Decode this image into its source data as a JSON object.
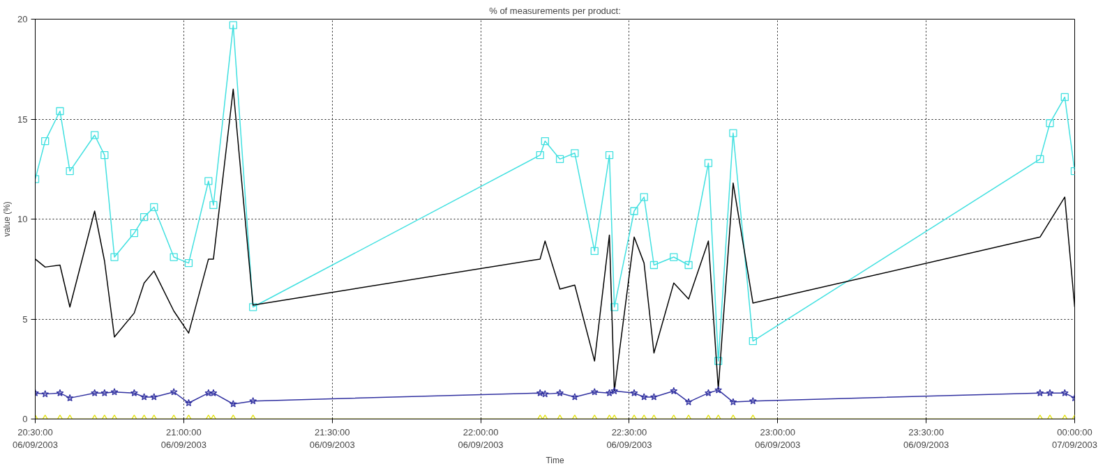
{
  "chart_data": {
    "type": "line",
    "title": "% of measurements per product:",
    "xlabel": "Time",
    "ylabel": "value (%)",
    "x": [
      "2003-09-06T20:30",
      "2003-09-06T20:32",
      "2003-09-06T20:35",
      "2003-09-06T20:37",
      "2003-09-06T20:42",
      "2003-09-06T20:44",
      "2003-09-06T20:46",
      "2003-09-06T20:50",
      "2003-09-06T20:52",
      "2003-09-06T20:54",
      "2003-09-06T20:58",
      "2003-09-06T21:01",
      "2003-09-06T21:05",
      "2003-09-06T21:06",
      "2003-09-06T21:10",
      "2003-09-06T21:14",
      "2003-09-06T22:12",
      "2003-09-06T22:13",
      "2003-09-06T22:16",
      "2003-09-06T22:19",
      "2003-09-06T22:23",
      "2003-09-06T22:26",
      "2003-09-06T22:27",
      "2003-09-06T22:31",
      "2003-09-06T22:33",
      "2003-09-06T22:35",
      "2003-09-06T22:39",
      "2003-09-06T22:42",
      "2003-09-06T22:46",
      "2003-09-06T22:48",
      "2003-09-06T22:51",
      "2003-09-06T22:55",
      "2003-09-06T23:53",
      "2003-09-06T23:55",
      "2003-09-06T23:58",
      "2003-09-07T00:00"
    ],
    "series": [
      {
        "color": "#40e0e0",
        "marker": "square",
        "values": [
          12.0,
          13.9,
          15.4,
          12.4,
          14.2,
          13.2,
          8.1,
          9.3,
          10.1,
          10.6,
          8.1,
          7.8,
          11.9,
          10.7,
          19.7,
          5.6,
          13.2,
          13.9,
          13.0,
          13.3,
          8.4,
          13.2,
          5.6,
          10.4,
          11.1,
          7.7,
          8.1,
          7.7,
          12.8,
          2.9,
          14.3,
          3.9,
          13.0,
          14.8,
          16.1,
          12.4
        ]
      },
      {
        "color": "#000000",
        "values": [
          8.0,
          7.6,
          7.7,
          5.6,
          10.4,
          7.9,
          4.1,
          5.3,
          6.8,
          7.4,
          5.4,
          4.3,
          8.0,
          8.0,
          16.5,
          5.7,
          8.0,
          8.9,
          6.5,
          6.7,
          2.9,
          9.2,
          1.4,
          9.1,
          7.8,
          3.3,
          6.8,
          6.0,
          8.9,
          1.5,
          11.8,
          5.8,
          9.1,
          9.9,
          11.1,
          5.6
        ]
      },
      {
        "color": "#3030a0",
        "marker": "star",
        "values": [
          1.3,
          1.25,
          1.3,
          1.05,
          1.3,
          1.3,
          1.35,
          1.3,
          1.1,
          1.1,
          1.35,
          0.8,
          1.3,
          1.3,
          0.75,
          0.9,
          1.3,
          1.25,
          1.3,
          1.1,
          1.35,
          1.3,
          1.4,
          1.3,
          1.1,
          1.1,
          1.4,
          0.85,
          1.3,
          1.45,
          0.85,
          0.9,
          1.3,
          1.3,
          1.3,
          1.05
        ]
      },
      {
        "color": "#e0e000",
        "marker": "triangle",
        "values": [
          0,
          0,
          0,
          0,
          0,
          0,
          0,
          0,
          0,
          0,
          0,
          0,
          0,
          0,
          0,
          0,
          0,
          0,
          0,
          0,
          0,
          0,
          0,
          0,
          0,
          0,
          0,
          0,
          0,
          0,
          0,
          0,
          0,
          0,
          0,
          0
        ]
      }
    ],
    "xlim": [
      "2003-09-06T20:30",
      "2003-09-07T00:00"
    ],
    "xticks": [
      {
        "value": "2003-09-06T20:30",
        "label": "20:30:00\n06/09/2003"
      },
      {
        "value": "2003-09-06T21:00",
        "label": "21:00:00\n06/09/2003"
      },
      {
        "value": "2003-09-06T21:30",
        "label": "21:30:00\n06/09/2003"
      },
      {
        "value": "2003-09-06T22:00",
        "label": "22:00:00\n06/09/2003"
      },
      {
        "value": "2003-09-06T22:30",
        "label": "22:30:00\n06/09/2003"
      },
      {
        "value": "2003-09-06T23:00",
        "label": "23:00:00\n06/09/2003"
      },
      {
        "value": "2003-09-06T23:30",
        "label": "23:30:00\n06/09/2003"
      },
      {
        "value": "2003-09-07T00:00",
        "label": "00:00:00\n07/09/2003"
      }
    ],
    "ylim": [
      0,
      20
    ],
    "yticks": [
      0,
      5,
      10,
      15,
      20
    ],
    "grid": true,
    "line_style": "solid"
  }
}
